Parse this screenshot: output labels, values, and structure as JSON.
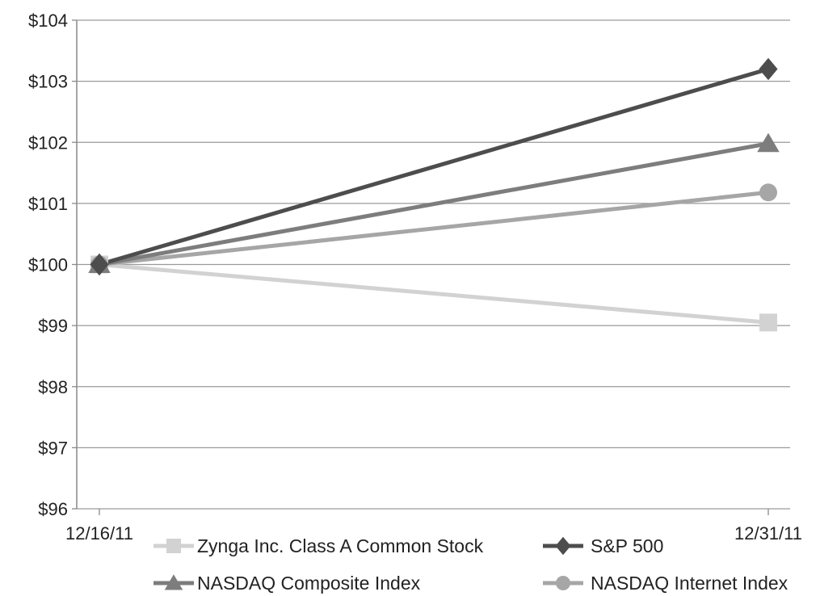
{
  "chart_data": {
    "type": "line",
    "x": [
      "12/16/11",
      "12/31/11"
    ],
    "ylim": [
      96,
      104
    ],
    "yticks": [
      96,
      97,
      98,
      99,
      100,
      101,
      102,
      103,
      104
    ],
    "ytick_labels": [
      "$96",
      "$97",
      "$98",
      "$99",
      "$100",
      "$101",
      "$102",
      "$103",
      "$104"
    ],
    "grid": true,
    "legend_position": "bottom",
    "series": [
      {
        "name": "Zynga Inc. Class A Common Stock",
        "values": [
          100,
          99.05
        ],
        "color": "#d2d2d2",
        "marker": "square"
      },
      {
        "name": "S&P 500",
        "values": [
          100,
          103.2
        ],
        "color": "#4d4d4d",
        "marker": "diamond"
      },
      {
        "name": "NASDAQ Composite Index",
        "values": [
          100,
          101.98
        ],
        "color": "#7d7d7d",
        "marker": "triangle"
      },
      {
        "name": "NASDAQ Internet Index",
        "values": [
          100,
          101.18
        ],
        "color": "#a6a6a6",
        "marker": "circle"
      }
    ]
  }
}
